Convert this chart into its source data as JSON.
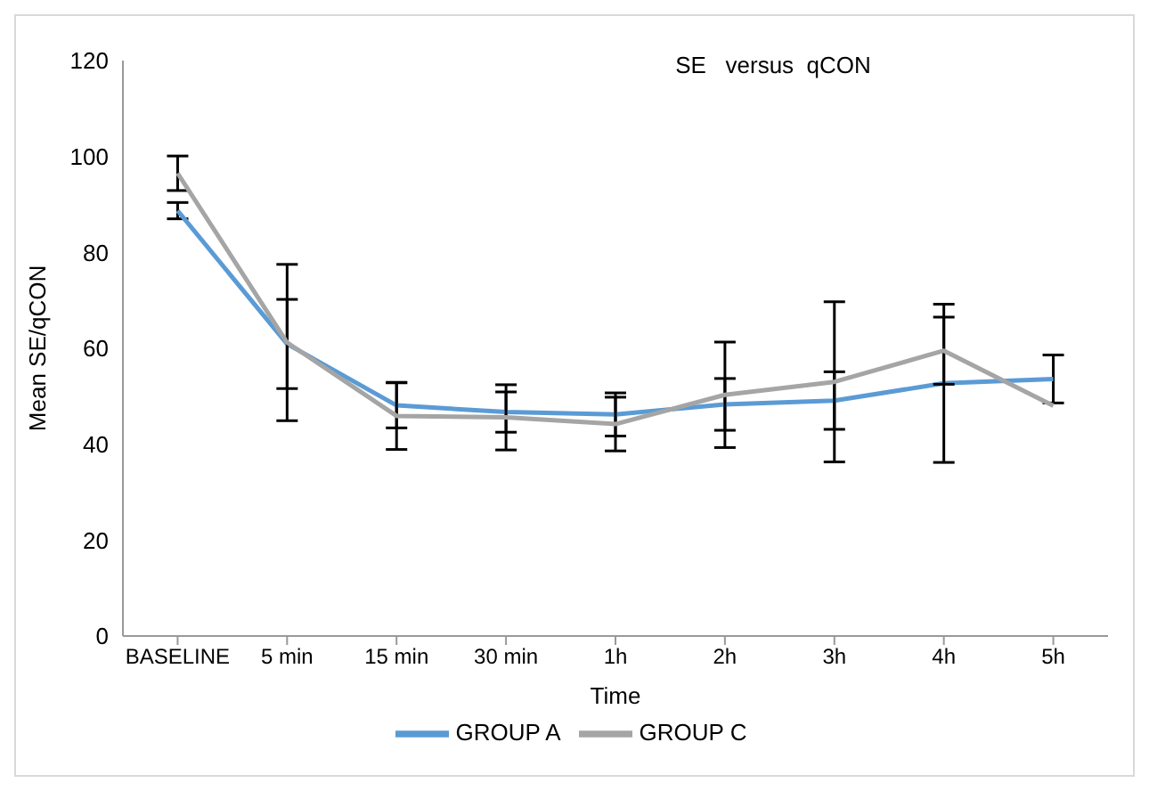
{
  "chart_data": {
    "type": "line",
    "title": "SE   versus  qCON",
    "xlabel": "Time",
    "ylabel": "Mean  SE/qCON",
    "categories": [
      "BASELINE",
      "5 min",
      "15 min",
      "30 min",
      "1h",
      "2h",
      "3h",
      "4h",
      "5h"
    ],
    "series": [
      {
        "name": "GROUP A",
        "color": "#5b9bd5",
        "values": [
          88.7,
          60.9,
          48.1,
          46.7,
          46.2,
          48.3,
          49.1,
          52.7,
          53.6
        ],
        "errors": [
          1.7,
          9.3,
          4.7,
          4.2,
          4.5,
          5.4,
          6,
          16.5,
          5
        ]
      },
      {
        "name": "GROUP C",
        "color": "#a5a5a5",
        "values": [
          96.5,
          61.2,
          45.9,
          45.6,
          44.2,
          50.3,
          53,
          59.5,
          48
        ],
        "errors": [
          3.6,
          16.3,
          7,
          6.8,
          5.6,
          11,
          16.7,
          7,
          null
        ]
      }
    ],
    "ylim": [
      0,
      120
    ],
    "yticks": [
      0,
      20,
      40,
      60,
      80,
      100,
      120
    ],
    "grid": false,
    "legend": "bottom",
    "marker": "none",
    "line_style": "solid"
  }
}
